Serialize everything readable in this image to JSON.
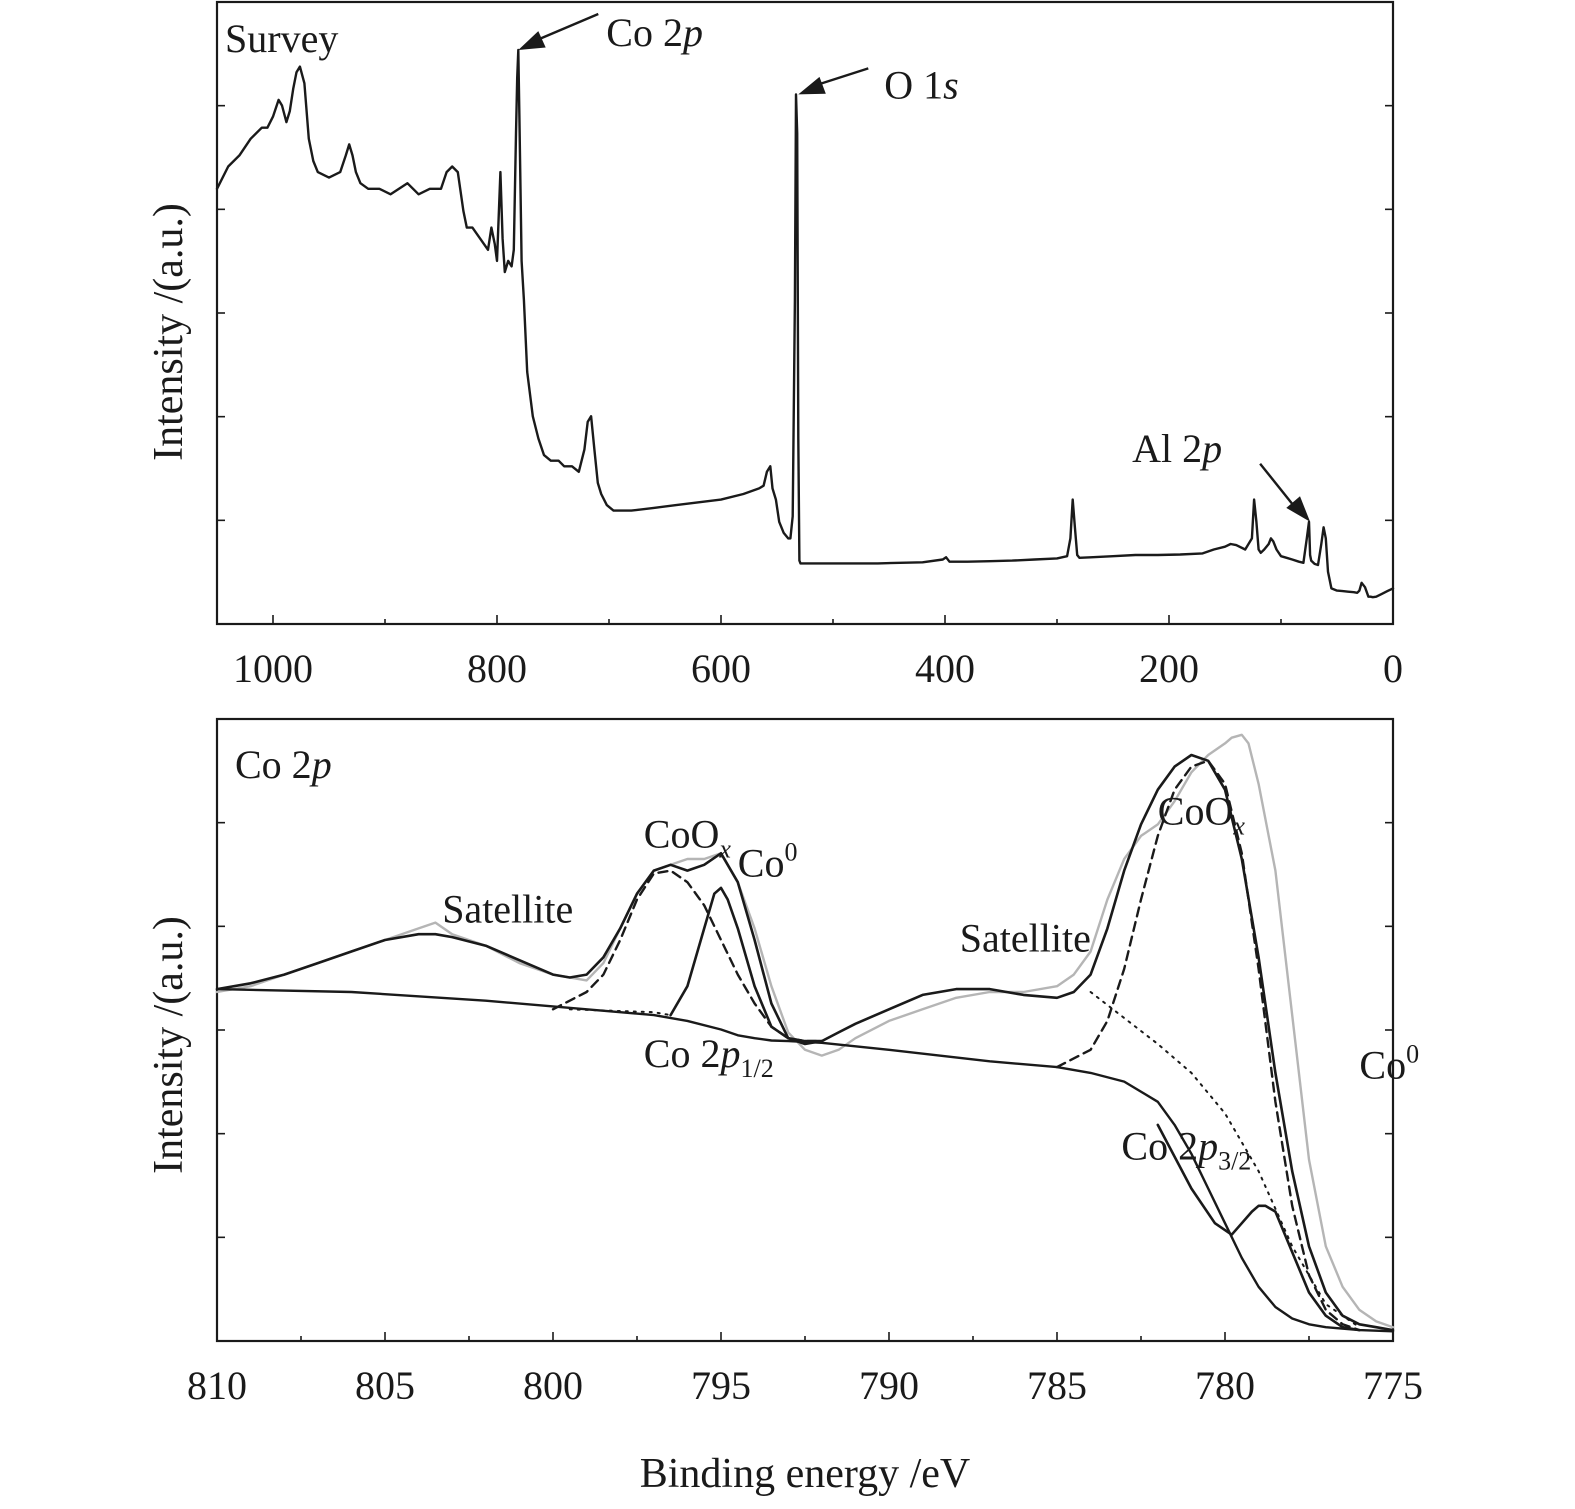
{
  "chart_data": [
    {
      "type": "line",
      "panel_label": "Survey",
      "ylabel": "Intensity /(a.u.)",
      "xlim": [
        1050,
        0
      ],
      "ylim": [
        0,
        100
      ],
      "x_ticks": [
        1000,
        800,
        600,
        400,
        200,
        0
      ],
      "x_tick_labels": [
        "1000",
        "800",
        "600",
        "400",
        "200",
        "0"
      ],
      "series": [
        {
          "color": "#1a1a1a",
          "x": [
            1050,
            1040,
            1030,
            1020,
            1010,
            1005,
            1000,
            995,
            992,
            988,
            985,
            982,
            979,
            976,
            972,
            968,
            964,
            960,
            950,
            940,
            935,
            932,
            929,
            926,
            922,
            915,
            905,
            895,
            880,
            870,
            860,
            850,
            845,
            840,
            835,
            830,
            827,
            822,
            815,
            808,
            805,
            802,
            800,
            797,
            795,
            793,
            790,
            787,
            785,
            783,
            782,
            781,
            780,
            779,
            778,
            776,
            773,
            768,
            763,
            758,
            752,
            745,
            740,
            733,
            727,
            722,
            719,
            716,
            713,
            710,
            707,
            702,
            696,
            690,
            680,
            660,
            640,
            620,
            600,
            580,
            566,
            562,
            559,
            556,
            554,
            551,
            548,
            544,
            540,
            538,
            536,
            534,
            533,
            532,
            531,
            530,
            529,
            528,
            527,
            526,
            523,
            515,
            500,
            480,
            460,
            440,
            420,
            402,
            399,
            396,
            380,
            360,
            340,
            320,
            300,
            291,
            288,
            286,
            284,
            282,
            280,
            270,
            250,
            230,
            210,
            190,
            170,
            160,
            150,
            145,
            140,
            132,
            126,
            124,
            122,
            120,
            118,
            115,
            111,
            109,
            107,
            104,
            100,
            95,
            90,
            84,
            80,
            77,
            75,
            74,
            73,
            70,
            67,
            64,
            62,
            60,
            58,
            55,
            50,
            45,
            40,
            35,
            32,
            30,
            28,
            25,
            22,
            20,
            18,
            15,
            10,
            5,
            0
          ],
          "y": [
            75,
            79,
            81,
            84,
            86,
            86,
            88,
            91,
            90,
            87,
            89,
            93,
            96,
            97,
            94,
            84,
            80,
            78,
            77,
            78,
            81,
            83,
            81,
            78,
            76,
            75,
            75,
            74,
            76,
            74,
            75,
            75,
            78,
            79,
            78,
            71,
            68,
            68,
            66,
            64,
            68,
            65,
            62,
            78,
            66,
            60,
            62,
            61,
            64,
            85,
            95,
            100,
            88,
            75,
            62,
            55,
            42,
            34,
            30,
            27,
            26,
            26,
            25,
            25,
            24,
            28,
            33,
            34,
            28,
            22,
            20,
            18,
            17,
            17,
            17,
            17.5,
            18,
            18.5,
            19,
            20,
            21,
            21.5,
            24,
            25,
            21,
            19,
            15,
            13,
            12,
            12,
            16,
            55,
            92,
            85,
            30,
            8,
            7.5,
            7.5,
            7.5,
            7.5,
            7.5,
            7.5,
            7.5,
            7.5,
            7.5,
            7.6,
            7.7,
            8.2,
            8.6,
            7.8,
            7.8,
            7.9,
            8,
            8.2,
            8.4,
            8.8,
            12,
            19,
            14,
            9,
            8.5,
            8.6,
            8.8,
            9,
            9,
            9.1,
            9.3,
            10,
            10.5,
            11,
            10.8,
            10,
            12,
            19,
            15,
            10,
            9.4,
            10,
            11,
            12,
            11.5,
            10,
            8.8,
            8.5,
            8.2,
            7.8,
            7.6,
            12,
            15,
            9,
            8,
            7.4,
            7.2,
            11,
            14,
            12,
            6,
            3,
            2.6,
            2.5,
            2.4,
            2.3,
            2.2,
            2.6,
            4,
            3.2,
            1.5,
            1.5,
            1.4,
            1.5,
            2,
            2.5,
            3
          ]
        }
      ],
      "annotations": [
        {
          "text": "Co 2",
          "ital": "p",
          "x": 781,
          "y": 100
        },
        {
          "text": "O 1",
          "ital": "s",
          "x": 531,
          "y": 92
        },
        {
          "text": "Al 2",
          "ital": "p",
          "x": 74,
          "y": 15
        }
      ]
    },
    {
      "type": "line",
      "panel_label": "Co 2",
      "panel_label_ital": "p",
      "xlabel": "Binding energy /eV",
      "ylabel": "Intensity /(a.u.)",
      "xlim": [
        810,
        775
      ],
      "ylim": [
        0,
        100
      ],
      "x_ticks": [
        810,
        805,
        800,
        795,
        790,
        785,
        780,
        775
      ],
      "x_tick_labels": [
        "810",
        "805",
        "800",
        "795",
        "790",
        "785",
        "780",
        "775"
      ],
      "series": [
        {
          "style": "raw-data",
          "color": "#b5b5b5",
          "x": [
            810,
            809,
            808,
            807,
            806,
            805,
            804,
            803.5,
            803,
            802,
            801,
            800,
            799,
            798.5,
            798,
            797.5,
            797,
            796.5,
            796,
            795.5,
            795,
            794.5,
            794,
            793.5,
            793,
            792.5,
            792,
            791.5,
            791,
            790,
            789,
            788,
            787,
            786,
            785,
            784.5,
            784,
            783.5,
            783,
            782.5,
            782,
            781.5,
            781,
            780.5,
            780,
            779.8,
            779.5,
            779.3,
            779,
            778.5,
            778,
            777.5,
            777,
            776.5,
            776,
            775.5,
            775
          ],
          "y": [
            59,
            60,
            62,
            64,
            66,
            68,
            70,
            71,
            69,
            67,
            64,
            62,
            61,
            64,
            70,
            76,
            80,
            81,
            82,
            82,
            83,
            78,
            70,
            60,
            52,
            49,
            48,
            49,
            51,
            54,
            56,
            58,
            59,
            59,
            60,
            62,
            66,
            75,
            82,
            86,
            88,
            92,
            97,
            100,
            102,
            103,
            103.5,
            102,
            95,
            80,
            55,
            30,
            15,
            8,
            4,
            2,
            1
          ]
        },
        {
          "style": "envelope",
          "color": "#1a1a1a",
          "x": [
            810,
            809,
            808,
            807,
            806,
            805,
            804,
            803.5,
            803,
            802,
            801,
            800,
            799.5,
            799,
            798.5,
            798,
            797.5,
            797,
            796.5,
            796,
            795.5,
            795,
            794.5,
            794,
            793.5,
            793,
            792.5,
            792,
            791.5,
            791,
            790,
            789,
            788,
            787,
            786,
            785,
            784.5,
            784,
            783.5,
            783,
            782.5,
            782,
            781.5,
            781,
            780.5,
            780,
            779.5,
            779,
            778.5,
            778,
            777.5,
            777,
            776.5,
            776,
            775.5,
            775
          ],
          "y": [
            59.5,
            60.5,
            62,
            64,
            66,
            68,
            69,
            69,
            68.5,
            67,
            64.5,
            62,
            61.5,
            62,
            65,
            70,
            76,
            80,
            81,
            80,
            81,
            83,
            78,
            68,
            57,
            51,
            50,
            50.5,
            52,
            53.5,
            56,
            58.5,
            59.5,
            59.5,
            58.5,
            58,
            59,
            62,
            70,
            80,
            88,
            94,
            98,
            100,
            99,
            94,
            82,
            65,
            45,
            28,
            15,
            7,
            3,
            1.5,
            1,
            0.5
          ]
        },
        {
          "style": "component-CoOx",
          "color": "#1a1a1a",
          "x": [
            800,
            799,
            798.5,
            798,
            797.5,
            797,
            796.5,
            796,
            795.5,
            795,
            794.5,
            794,
            793.5,
            793,
            792.5,
            792
          ],
          "y": [
            56,
            59,
            62,
            68,
            75,
            79.5,
            80,
            78,
            74,
            68,
            62,
            57,
            53,
            51,
            50.5,
            50.5
          ]
        },
        {
          "style": "component-Co0",
          "color": "#1a1a1a",
          "x": [
            796.5,
            796,
            795.5,
            795.2,
            795,
            794.8,
            794.5,
            794,
            793.5,
            793,
            792.5,
            792
          ],
          "y": [
            55,
            60,
            70,
            76,
            77,
            75,
            70,
            60,
            53,
            51,
            50.5,
            50.5
          ]
        },
        {
          "style": "component-CoOx",
          "color": "#1a1a1a",
          "x": [
            785,
            784,
            783.5,
            783,
            782.5,
            782,
            781.5,
            781,
            780.5,
            780,
            779.5,
            779,
            778.5,
            778,
            777.5,
            777,
            776.5,
            776
          ],
          "y": [
            46,
            49,
            54,
            63,
            75,
            86,
            94,
            98,
            99,
            95,
            83,
            63,
            40,
            22,
            10,
            4,
            1.5,
            0.5
          ]
        },
        {
          "style": "component-Co0",
          "color": "#1a1a1a",
          "x": [
            782,
            781,
            780.3,
            779.8,
            779.5,
            779.2,
            779,
            778.8,
            778.5,
            778,
            777.5,
            777,
            776.5,
            776
          ],
          "y": [
            36,
            25,
            19,
            17,
            19,
            21,
            22,
            22,
            21,
            14,
            7,
            3,
            1,
            0.5
          ]
        },
        {
          "style": "background",
          "color": "#1a1a1a",
          "x": [
            810,
            806,
            802,
            799,
            798,
            797,
            796,
            795,
            794.5,
            794,
            793.5,
            793,
            792,
            790,
            787,
            785,
            784,
            783,
            782,
            781.5,
            781,
            780.5,
            780,
            779.5,
            779,
            778.5,
            778,
            777.5,
            777,
            776,
            775
          ],
          "y": [
            59.5,
            59,
            57.5,
            56,
            55.5,
            55,
            54,
            52.5,
            51.5,
            51,
            50.6,
            50.5,
            50.2,
            49,
            47,
            46,
            45,
            43.5,
            40,
            36,
            31,
            25,
            19,
            13,
            8,
            4.5,
            2.5,
            1.5,
            1,
            0.5,
            0.3
          ]
        },
        {
          "style": "dotted-guide",
          "color": "#1a1a1a",
          "x": [
            799.5,
            797,
            796.5
          ],
          "y": [
            56,
            55.5,
            55
          ]
        },
        {
          "style": "dotted-guide",
          "color": "#1a1a1a",
          "x": [
            784,
            782,
            781,
            780,
            779,
            778,
            777,
            776
          ],
          "y": [
            59,
            50,
            45,
            38,
            28,
            15,
            5,
            1
          ]
        }
      ],
      "annotations": [
        {
          "text": "Satellite",
          "x": 803,
          "y": 71
        },
        {
          "text": "CoO",
          "sub": "x",
          "x": 797,
          "y": 84
        },
        {
          "text": "Co",
          "sup": "0",
          "x": 794.5,
          "y": 79
        },
        {
          "text": "Co 2",
          "ital": "p",
          "sub": "1/2",
          "x": 797,
          "y": 46
        },
        {
          "text": "Satellite",
          "x": 787,
          "y": 66
        },
        {
          "text": "CoO",
          "sub": "x",
          "x": 782,
          "y": 88
        },
        {
          "text": "Co 2",
          "ital": "p",
          "sub": "3/2",
          "x": 781,
          "y": 30
        },
        {
          "text": "Co",
          "sup": "0",
          "x": 776,
          "y": 44
        }
      ]
    }
  ]
}
